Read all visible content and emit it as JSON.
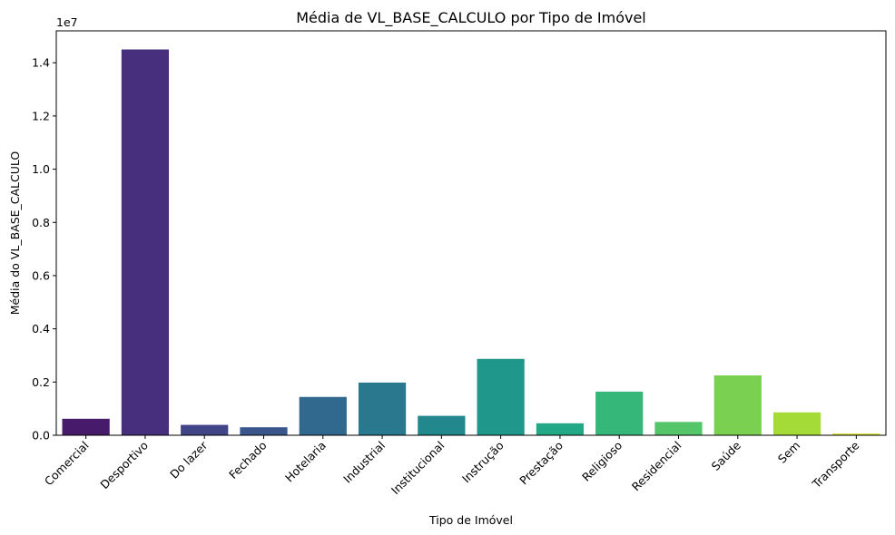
{
  "chart_data": {
    "type": "bar",
    "title": "Média de VL_BASE_CALCULO por Tipo de Imóvel",
    "xlabel": "Tipo de Imóvel",
    "ylabel": "Média do VL_BASE_CALCULO",
    "y_offset_label": "1e7",
    "y_scale": 10000000,
    "ylim": [
      0,
      1.52
    ],
    "yticks": [
      0.0,
      0.2,
      0.4,
      0.6,
      0.8,
      1.0,
      1.2,
      1.4
    ],
    "ytick_labels": [
      "0.0",
      "0.2",
      "0.4",
      "0.6",
      "0.8",
      "1.0",
      "1.2",
      "1.4"
    ],
    "grid": false,
    "categories": [
      "Comercial",
      "Desportivo",
      "Do lazer",
      "Fechado",
      "Hotelaria",
      "Industrial",
      "Institucional",
      "Instrução",
      "Prestação",
      "Religioso",
      "Residencial",
      "Saúde",
      "Sem",
      "Transporte"
    ],
    "values": [
      0.062,
      1.45,
      0.039,
      0.03,
      0.144,
      0.198,
      0.073,
      0.287,
      0.045,
      0.164,
      0.05,
      0.225,
      0.086,
      0.006
    ],
    "colors": [
      "#481a6c",
      "#472f7d",
      "#414487",
      "#39568c",
      "#31688e",
      "#2a788e",
      "#23888e",
      "#1f988b",
      "#22a884",
      "#35b779",
      "#54c568",
      "#7ad151",
      "#a5db36",
      "#d2e21b"
    ]
  }
}
